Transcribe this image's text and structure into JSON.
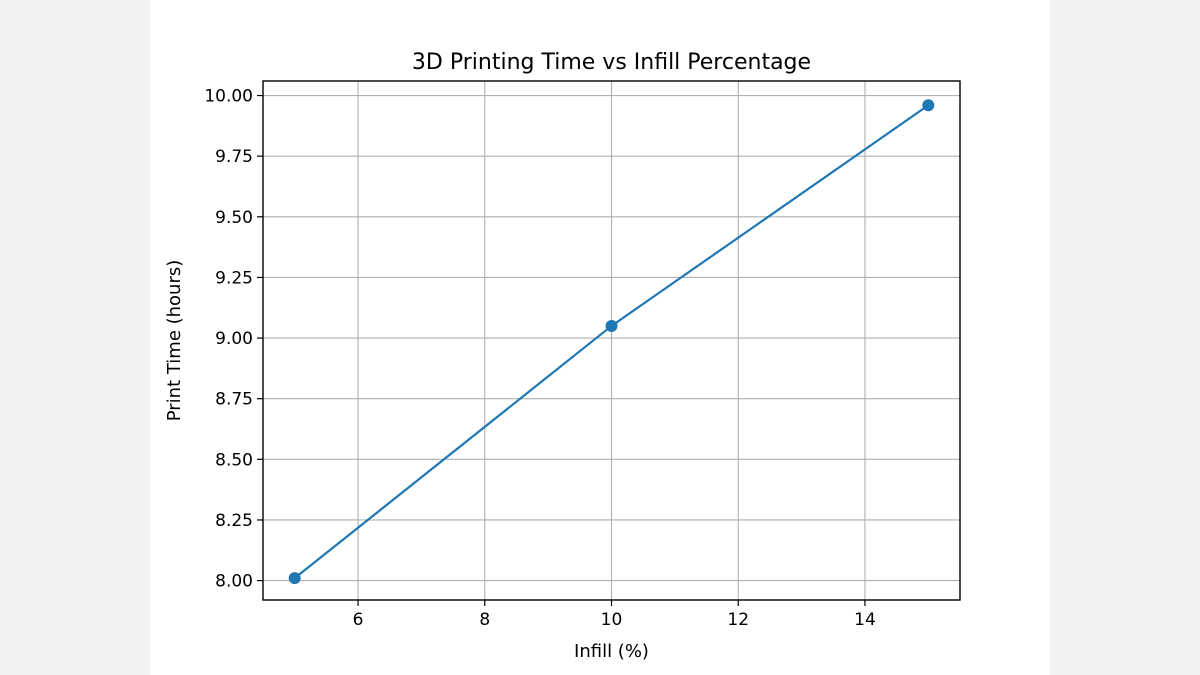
{
  "chart_data": {
    "type": "line",
    "title": "3D Printing Time vs Infill Percentage",
    "xlabel": "Infill (%)",
    "ylabel": "Print Time (hours)",
    "xlim": [
      4.5,
      15.5
    ],
    "ylim": [
      7.92,
      10.06
    ],
    "xticks": [
      6,
      8,
      10,
      12,
      14
    ],
    "xtick_labels": [
      "6",
      "8",
      "10",
      "12",
      "14"
    ],
    "yticks": [
      8.0,
      8.25,
      8.5,
      8.75,
      9.0,
      9.25,
      9.5,
      9.75,
      10.0
    ],
    "ytick_labels": [
      "8.00",
      "8.25",
      "8.50",
      "8.75",
      "9.00",
      "9.25",
      "9.50",
      "9.75",
      "10.00"
    ],
    "grid": true,
    "markers": true,
    "series": [
      {
        "color": "#1f77b4",
        "x": [
          5,
          10,
          15
        ],
        "y": [
          8.01,
          9.05,
          9.96
        ]
      }
    ]
  }
}
